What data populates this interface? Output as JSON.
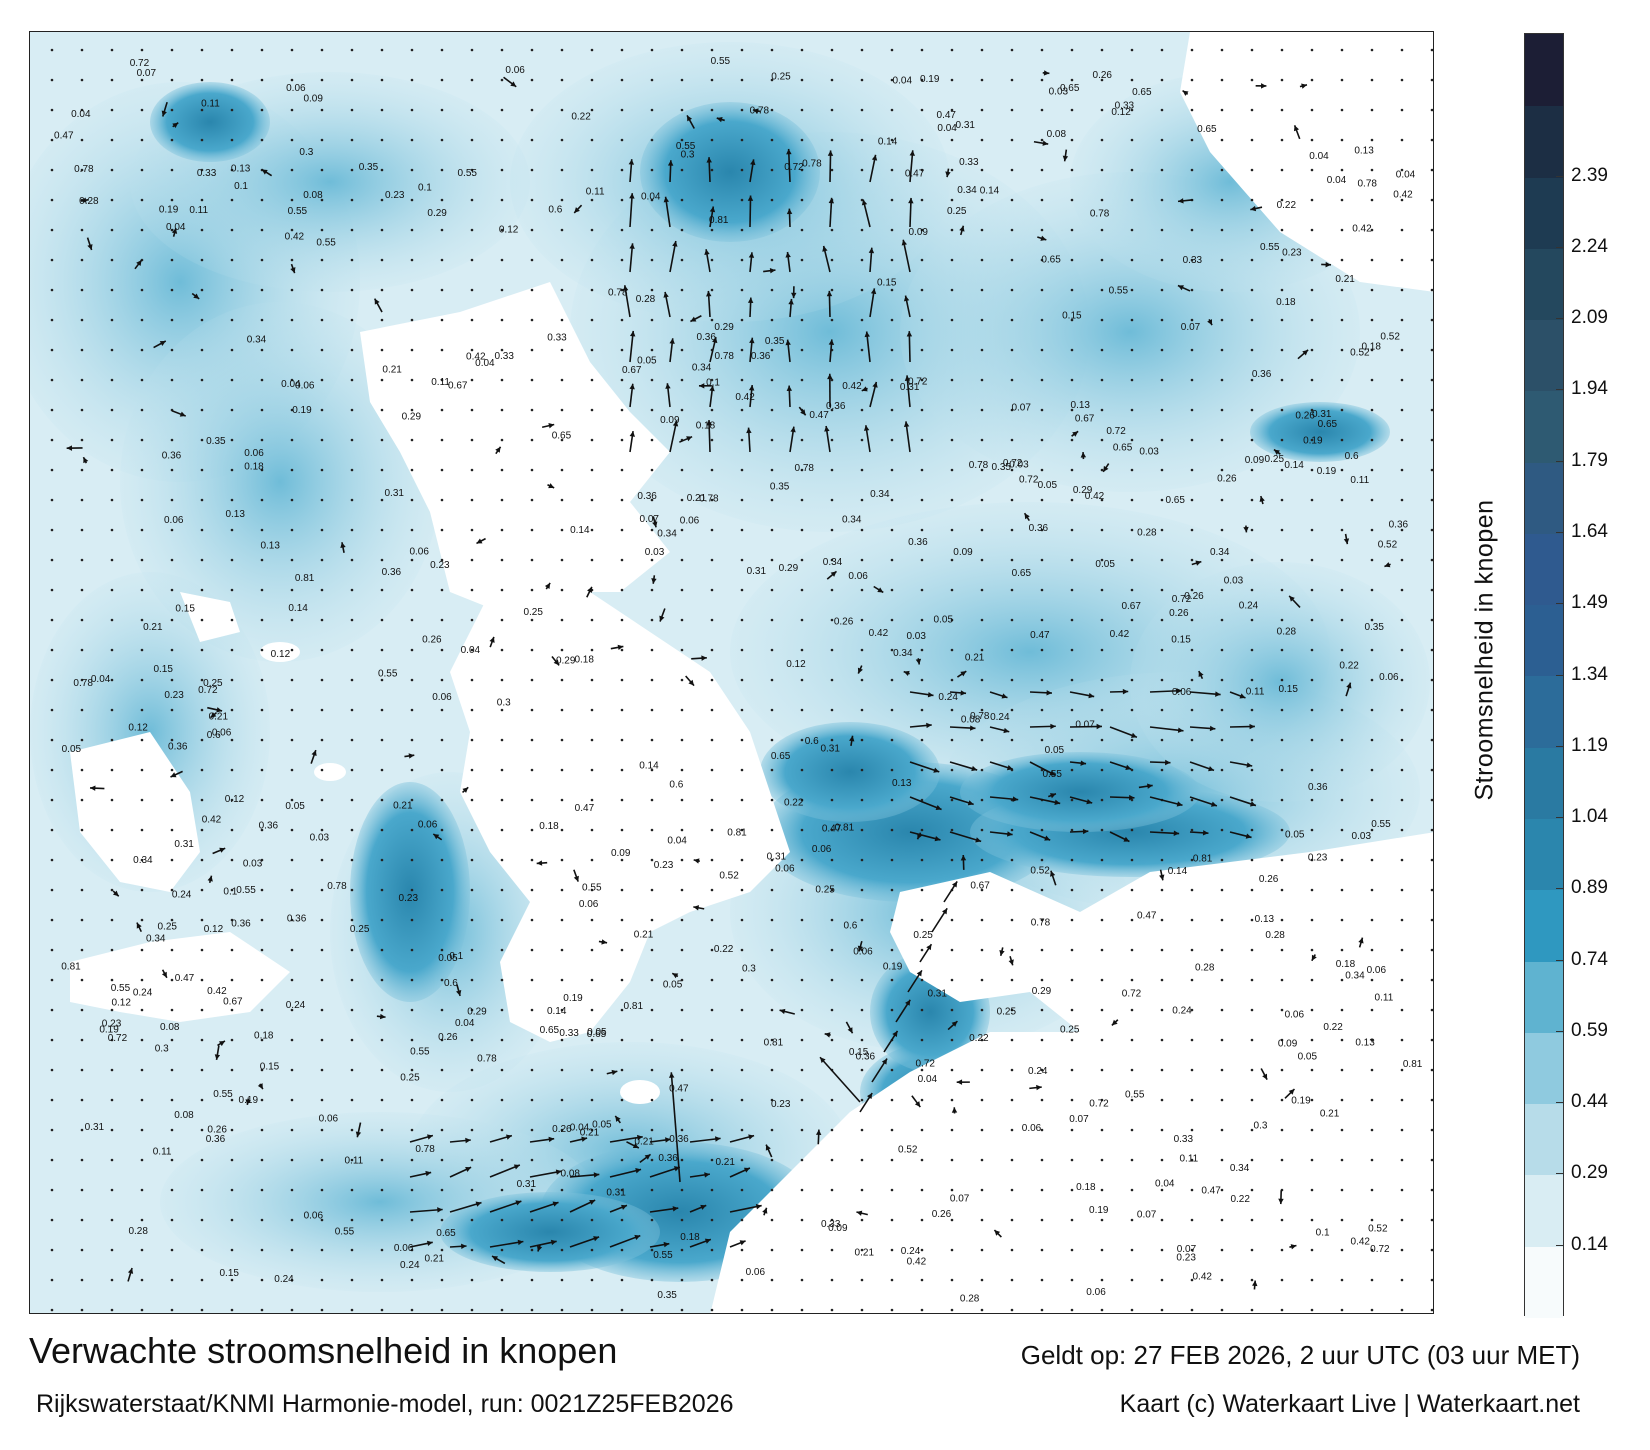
{
  "map": {
    "title": "Verwachte stroomsnelheid in knopen",
    "subtitle": "Rijkswaterstaat/KNMI Harmonie-model, run: 0021Z25FEB2026",
    "valid_time": "Geldt op: 27 FEB 2026, 2 uur UTC (03 uur MET)",
    "credit": "Kaart (c) Waterkaart Live | Waterkaart.net"
  },
  "colorbar": {
    "label": "Stroomsnelheid in knopen",
    "ticks": [
      "0.14",
      "0.29",
      "0.44",
      "0.59",
      "0.74",
      "0.89",
      "1.04",
      "1.19",
      "1.34",
      "1.49",
      "1.64",
      "1.79",
      "1.94",
      "2.09",
      "2.24",
      "2.39"
    ],
    "colors": [
      "#f7fbfc",
      "#d9edf3",
      "#b7dce9",
      "#8fcadf",
      "#5fb3d0",
      "#2f98c0",
      "#2b86ad",
      "#2a7aa2",
      "#2c6c9a",
      "#2c5f92",
      "#2f5a8f",
      "#2f5a82",
      "#2e5a72",
      "#2c5068",
      "#24485e",
      "#1e3b52",
      "#1c2e44",
      "#1c1e35"
    ],
    "accent": "#2f98c0"
  },
  "speed_labels": [
    [
      "0.19",
      "0.21",
      "0.18",
      "0.15",
      "0.09",
      "0.06",
      "0.05",
      "0.07",
      "0.04",
      "0.03"
    ],
    [
      "0.22",
      "0.23",
      "0.24",
      "0.13",
      "0.14",
      "0.11",
      "0.12",
      "0.1",
      "0.08",
      "0.06"
    ],
    [
      "0.36",
      "0.35",
      "0.33",
      "0.28",
      "0.31",
      "0.3",
      "0.34",
      "0.29",
      "0.26",
      "0.25"
    ],
    [
      "0.42",
      "0.47",
      "0.52",
      "0.55",
      "0.6",
      "0.65",
      "0.67",
      "0.72",
      "0.78",
      "0.81"
    ]
  ]
}
